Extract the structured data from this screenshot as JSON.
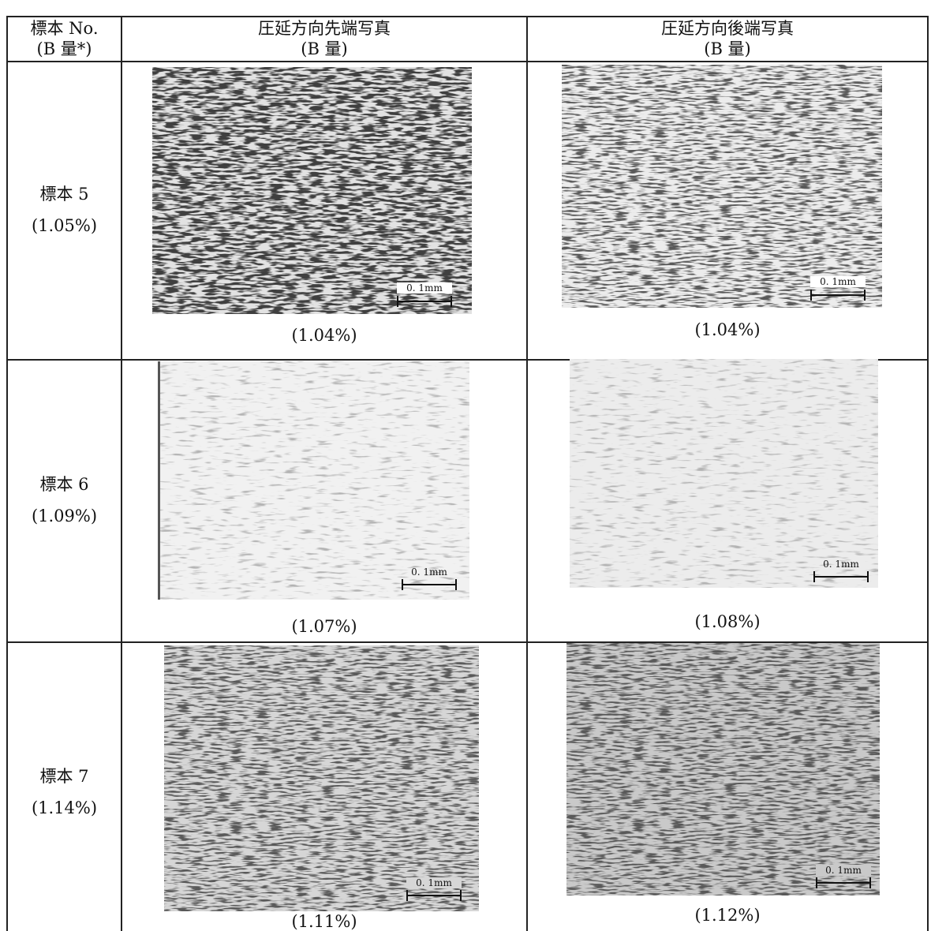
{
  "header": {
    "columns": [
      {
        "title": "標本 No.",
        "subtitle": "(B 量*)"
      },
      {
        "title": "圧延方向先端写真",
        "subtitle": "(B 量)"
      },
      {
        "title": "圧延方向後端写真",
        "subtitle": "(B 量)"
      }
    ]
  },
  "rows": [
    {
      "sample": "標本 5",
      "b_amount": "(1.05%)",
      "front": {
        "scale": "0. 1mm",
        "caption": "(1.04%)"
      },
      "rear": {
        "scale": "0. 1mm",
        "caption": "(1.04%)"
      }
    },
    {
      "sample": "標本 6",
      "b_amount": "(1.09%)",
      "front": {
        "scale": "0. 1mm",
        "caption": "(1.07%)"
      },
      "rear": {
        "scale": "0. 1mm",
        "caption": "(1.08%)"
      }
    },
    {
      "sample": "標本 7",
      "b_amount": "(1.14%)",
      "front": {
        "scale": "0. 1mm",
        "caption": "(1.11%)"
      },
      "rear": {
        "scale": "0. 1mm",
        "caption": "(1.12%)"
      }
    }
  ]
}
